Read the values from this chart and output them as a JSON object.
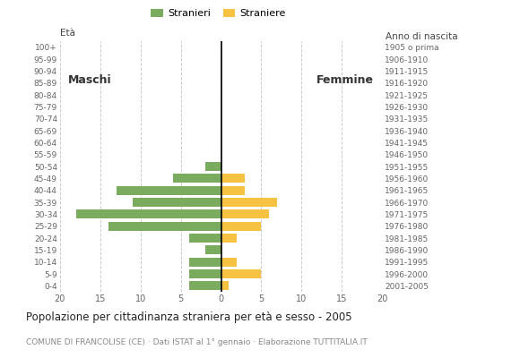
{
  "age_groups": [
    "0-4",
    "5-9",
    "10-14",
    "15-19",
    "20-24",
    "25-29",
    "30-34",
    "35-39",
    "40-44",
    "45-49",
    "50-54",
    "55-59",
    "60-64",
    "65-69",
    "70-74",
    "75-79",
    "80-84",
    "85-89",
    "90-94",
    "95-99",
    "100+"
  ],
  "birth_years": [
    "2001-2005",
    "1996-2000",
    "1991-1995",
    "1986-1990",
    "1981-1985",
    "1976-1980",
    "1971-1975",
    "1966-1970",
    "1961-1965",
    "1956-1960",
    "1951-1955",
    "1946-1950",
    "1941-1945",
    "1936-1940",
    "1931-1935",
    "1926-1930",
    "1921-1925",
    "1916-1920",
    "1911-1915",
    "1906-1910",
    "1905 o prima"
  ],
  "males": [
    4,
    4,
    4,
    2,
    4,
    14,
    18,
    11,
    13,
    6,
    2,
    0,
    0,
    0,
    0,
    0,
    0,
    0,
    0,
    0,
    0
  ],
  "females": [
    1,
    5,
    2,
    0,
    2,
    5,
    6,
    7,
    3,
    3,
    0,
    0,
    0,
    0,
    0,
    0,
    0,
    0,
    0,
    0,
    0
  ],
  "male_color": "#7aab5e",
  "female_color": "#f5c242",
  "bar_height": 0.75,
  "xlim": 20,
  "title": "Popolazione per cittadinanza straniera per età e sesso - 2005",
  "subtitle": "COMUNE DI FRANCOLISE (CE) · Dati ISTAT al 1° gennaio · Elaborazione TUTTITALIA.IT",
  "legend_male": "Stranieri",
  "legend_female": "Straniere",
  "ylabel_left": "Età",
  "ylabel_right": "Anno di nascita",
  "label_maschi": "Maschi",
  "label_femmine": "Femmine",
  "background_color": "#ffffff",
  "grid_color": "#cccccc"
}
